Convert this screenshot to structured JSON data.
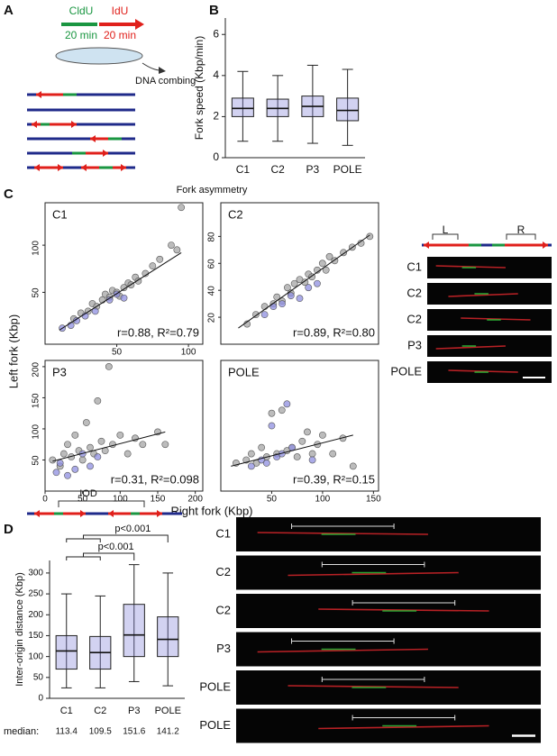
{
  "panel_labels": [
    "A",
    "B",
    "C",
    "D"
  ],
  "panel_a": {
    "labels": [
      "CldU",
      "IdU"
    ],
    "durations": [
      "20 min",
      "20 min"
    ],
    "step": "DNA combing"
  },
  "fork_asymmetry_title": "Fork asymmetry",
  "shared_axes": {
    "y_label": "Left fork (Kbp)",
    "x_label": "Right fork (Kbp)"
  },
  "fiber_panel_c": {
    "segment_labels": [
      "L",
      "R"
    ],
    "rows": [
      "C1",
      "C2",
      "C2",
      "P3",
      "POLE"
    ]
  },
  "fiber_panel_d": {
    "segment_label": "IOD",
    "rows": [
      "C1",
      "C2",
      "C2",
      "P3",
      "POLE",
      "POLE"
    ]
  },
  "chart_data": [
    {
      "type": "box",
      "ylabel": "Fork speed (Kbp/min)",
      "categories": [
        "C1",
        "C2",
        "P3",
        "POLE"
      ],
      "whisker_low": [
        0.8,
        0.8,
        0.7,
        0.6
      ],
      "q1": [
        2.0,
        2.0,
        2.0,
        1.8
      ],
      "median": [
        2.4,
        2.4,
        2.5,
        2.3
      ],
      "q3": [
        2.9,
        2.85,
        3.0,
        2.9
      ],
      "whisker_high": [
        4.2,
        4.0,
        4.5,
        4.3
      ],
      "color": "#7f7fd8",
      "ylim": [
        0,
        6.8
      ],
      "yticks": [
        0,
        2,
        4,
        6
      ]
    },
    {
      "type": "scatter",
      "title": "C1",
      "annotation": "r=0.88, R²=0.79",
      "xlim": [
        0,
        110
      ],
      "ylim": [
        -5,
        145
      ],
      "xticks": [
        50,
        100
      ],
      "yticks": [
        50,
        100
      ],
      "series": [
        {
          "color": "#a6a6a6",
          "x": [
            20,
            25,
            30,
            33,
            36,
            40,
            42,
            45,
            47,
            50,
            52,
            55,
            58,
            60,
            63,
            65,
            70,
            75,
            80,
            88,
            92,
            95
          ],
          "values": [
            22,
            28,
            30,
            38,
            35,
            42,
            48,
            45,
            52,
            50,
            46,
            55,
            60,
            58,
            66,
            62,
            70,
            78,
            85,
            100,
            95,
            140
          ]
        },
        {
          "color": "#8f8fe0",
          "x": [
            12,
            18,
            22,
            28,
            35,
            45,
            50,
            55
          ],
          "values": [
            12,
            15,
            20,
            25,
            30,
            42,
            48,
            44
          ]
        }
      ],
      "trendline": {
        "x": [
          10,
          95
        ],
        "y": [
          10,
          92
        ]
      }
    },
    {
      "type": "scatter",
      "title": "C2",
      "annotation": "r=0.89, R²=0.80",
      "xlim": [
        0,
        90
      ],
      "ylim": [
        0,
        105
      ],
      "xticks": [],
      "yticks": [
        20,
        40,
        60,
        80
      ],
      "series": [
        {
          "color": "#a6a6a6",
          "x": [
            15,
            20,
            25,
            30,
            32,
            35,
            38,
            40,
            42,
            45,
            48,
            50,
            52,
            55,
            58,
            60,
            62,
            65,
            70,
            75,
            80,
            85
          ],
          "values": [
            15,
            22,
            28,
            30,
            35,
            32,
            42,
            38,
            45,
            48,
            46,
            52,
            50,
            55,
            60,
            55,
            65,
            62,
            68,
            72,
            75,
            80
          ]
        },
        {
          "color": "#8f8fe0",
          "x": [
            25,
            30,
            35,
            40,
            45,
            50,
            55
          ],
          "values": [
            22,
            28,
            30,
            36,
            34,
            42,
            45
          ]
        }
      ],
      "trendline": {
        "x": [
          10,
          85
        ],
        "y": [
          12,
          81
        ]
      }
    },
    {
      "type": "scatter",
      "title": "P3",
      "annotation": "r=0.31, R²=0.098",
      "xlim": [
        0,
        210
      ],
      "ylim": [
        0,
        210
      ],
      "xticks": [
        0,
        50,
        100,
        150,
        200
      ],
      "yticks": [
        50,
        100,
        150,
        200
      ],
      "series": [
        {
          "color": "#a6a6a6",
          "x": [
            10,
            20,
            25,
            30,
            35,
            40,
            45,
            50,
            55,
            60,
            65,
            70,
            75,
            80,
            85,
            90,
            100,
            110,
            120,
            130,
            150,
            160
          ],
          "values": [
            50,
            40,
            60,
            75,
            55,
            90,
            65,
            50,
            110,
            70,
            60,
            145,
            80,
            65,
            200,
            75,
            90,
            60,
            85,
            75,
            95,
            75
          ]
        },
        {
          "color": "#8f8fe0",
          "x": [
            15,
            20,
            30,
            40,
            50,
            60,
            70
          ],
          "values": [
            30,
            45,
            25,
            35,
            60,
            40,
            55
          ]
        }
      ],
      "trendline": {
        "x": [
          10,
          160
        ],
        "y": [
          48,
          95
        ]
      }
    },
    {
      "type": "scatter",
      "title": "POLE",
      "annotation": "r=0.39, R²=0.15",
      "xlim": [
        0,
        155
      ],
      "ylim": [
        0,
        210
      ],
      "xticks": [
        50,
        100,
        150
      ],
      "yticks": [],
      "series": [
        {
          "color": "#a6a6a6",
          "x": [
            15,
            25,
            30,
            35,
            40,
            45,
            50,
            55,
            60,
            65,
            70,
            75,
            80,
            85,
            90,
            95,
            100,
            110,
            120,
            130
          ],
          "values": [
            45,
            50,
            60,
            45,
            70,
            55,
            125,
            60,
            130,
            65,
            70,
            55,
            80,
            95,
            60,
            75,
            90,
            60,
            85,
            40
          ]
        },
        {
          "color": "#8f8fe0",
          "x": [
            30,
            40,
            45,
            50,
            55,
            60,
            65,
            70,
            90
          ],
          "values": [
            40,
            50,
            45,
            105,
            55,
            60,
            140,
            70,
            50
          ]
        }
      ],
      "trendline": {
        "x": [
          10,
          130
        ],
        "y": [
          40,
          90
        ]
      }
    },
    {
      "type": "box",
      "ylabel": "Inter-origin distance (Kbp)",
      "categories": [
        "C1",
        "C2",
        "P3",
        "POLE"
      ],
      "whisker_low": [
        25,
        25,
        40,
        30
      ],
      "q1": [
        70,
        70,
        100,
        100
      ],
      "median": [
        113.4,
        109.5,
        151.6,
        141.2
      ],
      "q3": [
        150,
        148,
        225,
        195
      ],
      "whisker_high": [
        250,
        245,
        320,
        300
      ],
      "color": "#7f7fd8",
      "ylim": [
        0,
        330
      ],
      "yticks": [
        0,
        50,
        100,
        150,
        200,
        250,
        300
      ],
      "median_label": "median:",
      "annotations": [
        "p<0.001",
        "p<0.001"
      ]
    }
  ]
}
